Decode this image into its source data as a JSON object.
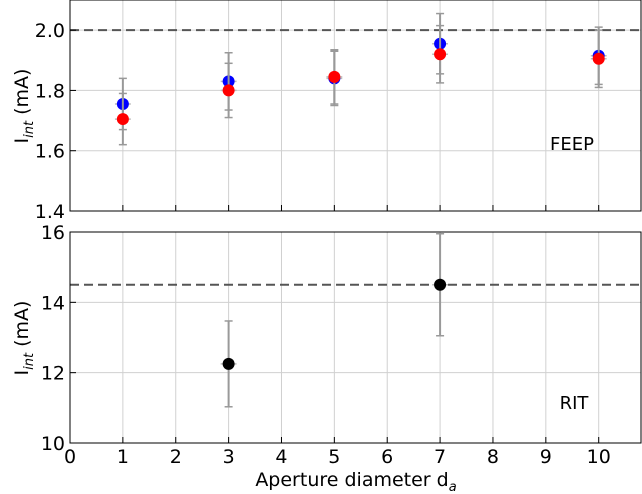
{
  "chart_data": [
    {
      "name": "FEEP",
      "type": "scatter",
      "annotation": "FEEP",
      "ylabel_main": "I",
      "ylabel_sub": "int",
      "ylabel_unit": " (mA)",
      "xlim": [
        0,
        10.8
      ],
      "ylim": [
        1.4,
        2.1
      ],
      "yticks": [
        1.4,
        1.6,
        1.8,
        2.0
      ],
      "ytick_labels": [
        "1.4",
        "1.6",
        "1.8",
        "2.0"
      ],
      "reference_line": 2.0,
      "grid": true,
      "series": [
        {
          "color": "#0000ff",
          "points": [
            {
              "x": 1,
              "y": 1.755,
              "xerr": 0.15,
              "yerr": 0.085
            },
            {
              "x": 3,
              "y": 1.83,
              "xerr": 0.15,
              "yerr": 0.095
            },
            {
              "x": 5,
              "y": 1.84,
              "xerr": 0.15,
              "yerr": 0.09
            },
            {
              "x": 7,
              "y": 1.955,
              "xerr": 0.15,
              "yerr": 0.1
            },
            {
              "x": 10,
              "y": 1.915,
              "xerr": 0.15,
              "yerr": 0.095
            }
          ]
        },
        {
          "color": "#ff0000",
          "points": [
            {
              "x": 1,
              "y": 1.705,
              "xerr": 0.15,
              "yerr": 0.085
            },
            {
              "x": 3,
              "y": 1.8,
              "xerr": 0.15,
              "yerr": 0.09
            },
            {
              "x": 5,
              "y": 1.845,
              "xerr": 0.15,
              "yerr": 0.09
            },
            {
              "x": 7,
              "y": 1.92,
              "xerr": 0.15,
              "yerr": 0.095
            },
            {
              "x": 10,
              "y": 1.905,
              "xerr": 0.15,
              "yerr": 0.095
            }
          ]
        }
      ]
    },
    {
      "name": "RIT",
      "type": "scatter",
      "annotation": "RIT",
      "ylabel_main": "I",
      "ylabel_sub": "int",
      "ylabel_unit": " (mA)",
      "xlabel_main": "Aperture diameter d",
      "xlabel_sub": "a",
      "xlim": [
        0,
        10.8
      ],
      "ylim": [
        10,
        16
      ],
      "xticks": [
        0,
        1,
        2,
        3,
        4,
        5,
        6,
        7,
        8,
        9,
        10
      ],
      "xtick_labels": [
        "0",
        "1",
        "2",
        "3",
        "4",
        "5",
        "6",
        "7",
        "8",
        "9",
        "10"
      ],
      "yticks": [
        10,
        12,
        14,
        16
      ],
      "ytick_labels": [
        "10",
        "12",
        "14",
        "16"
      ],
      "reference_line": 14.5,
      "grid": true,
      "series": [
        {
          "color": "#000000",
          "points": [
            {
              "x": 3,
              "y": 12.25,
              "xerr": 0.15,
              "yerr": 1.22
            },
            {
              "x": 7,
              "y": 14.5,
              "xerr": 0.15,
              "yerr": 1.45
            }
          ]
        }
      ]
    }
  ]
}
